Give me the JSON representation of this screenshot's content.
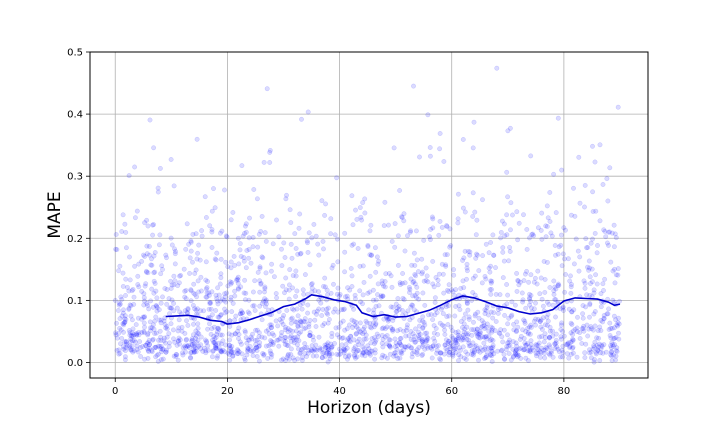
{
  "chart_data": {
    "type": "scatter",
    "title": "",
    "xlabel": "Horizon (days)",
    "ylabel": "MAPE",
    "xlim": [
      -4.5,
      95
    ],
    "ylim": [
      -0.025,
      0.5
    ],
    "xticks": [
      0,
      20,
      40,
      60,
      80
    ],
    "xtick_labels": [
      "0",
      "20",
      "40",
      "60",
      "80"
    ],
    "yticks": [
      0.0,
      0.1,
      0.2,
      0.3,
      0.4,
      0.5
    ],
    "ytick_labels": [
      "0.0",
      "0.1",
      "0.2",
      "0.3",
      "0.4",
      "0.5"
    ],
    "grid": true,
    "legend": "none",
    "colors": {
      "points": "#0000ff",
      "line": "#0000cc",
      "grid": "#b0b0b0"
    },
    "scatter_points": {
      "x_range": [
        0,
        90
      ],
      "count": 2200,
      "note_visible": "dense scatter of per-forecast absolute percentage errors"
    },
    "series": [
      {
        "type": "line",
        "x": [
          9,
          11,
          13,
          15,
          17,
          19,
          20,
          22,
          24,
          26,
          28,
          30,
          32,
          34,
          35,
          37,
          39,
          41,
          43,
          44,
          46,
          48,
          50,
          52,
          54,
          56,
          58,
          60,
          62,
          64,
          66,
          68,
          70,
          72,
          74,
          76,
          78,
          80,
          82,
          84,
          86,
          88,
          89,
          90
        ],
        "y": [
          0.074,
          0.075,
          0.076,
          0.073,
          0.068,
          0.066,
          0.062,
          0.064,
          0.069,
          0.075,
          0.081,
          0.09,
          0.094,
          0.103,
          0.109,
          0.106,
          0.101,
          0.098,
          0.092,
          0.08,
          0.074,
          0.077,
          0.073,
          0.074,
          0.079,
          0.084,
          0.092,
          0.101,
          0.107,
          0.104,
          0.098,
          0.091,
          0.088,
          0.082,
          0.078,
          0.08,
          0.085,
          0.099,
          0.104,
          0.103,
          0.102,
          0.097,
          0.092,
          0.094
        ]
      }
    ]
  }
}
